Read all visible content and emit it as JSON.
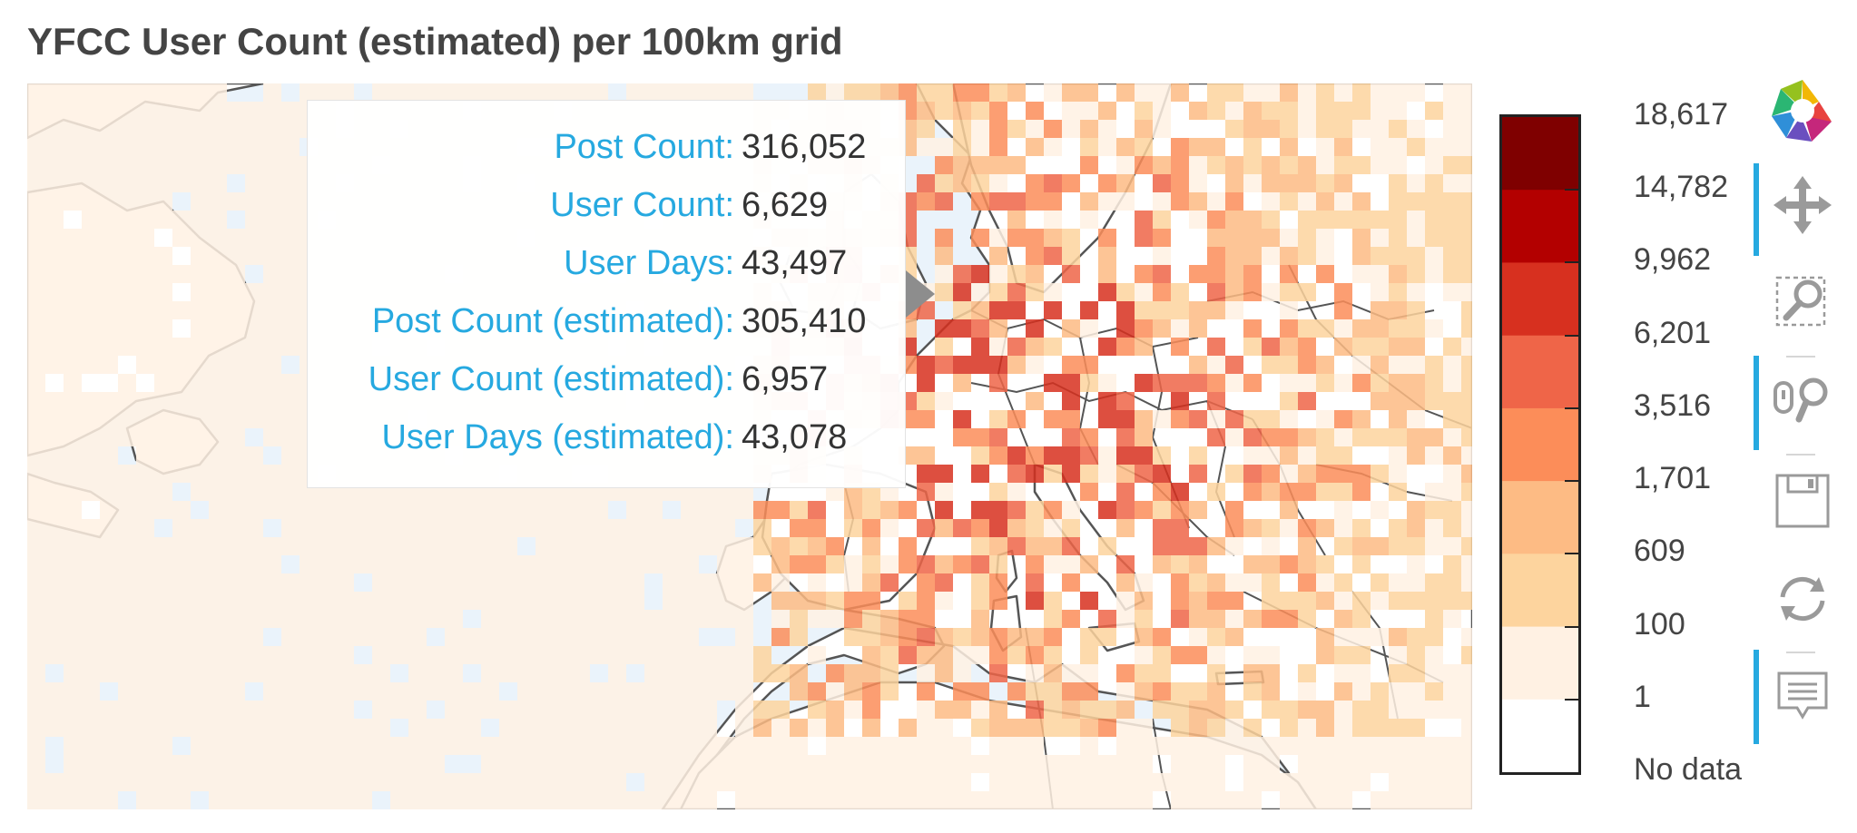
{
  "title": "YFCC User Count (estimated) per 100km grid",
  "tooltip": {
    "rows": [
      {
        "label": "Post Count:",
        "value": "316,052"
      },
      {
        "label": "User Count:",
        "value": "6,629"
      },
      {
        "label": "User Days:",
        "value": "43,497"
      },
      {
        "label": "Post Count (estimated):",
        "value": "305,410"
      },
      {
        "label": "User Count (estimated):",
        "value": "6,957"
      },
      {
        "label": "User Days (estimated):",
        "value": "43,078"
      }
    ]
  },
  "colorbar": {
    "labels": [
      "18,617",
      "14,782",
      "9,962",
      "6,201",
      "3,516",
      "1,701",
      "609",
      "100",
      "1",
      "No data"
    ],
    "colors": [
      "#7f0000",
      "#b30000",
      "#d7301f",
      "#ef6548",
      "#fc8d59",
      "#fdbb84",
      "#fdd49e",
      "#fff1e3",
      "#ffffff"
    ]
  },
  "map": {
    "ocean_color": "#eaf3fb",
    "land_color": "#ffffff",
    "border_color": "#555555"
  },
  "toolbar": {
    "tools": [
      {
        "name": "bokeh-logo-icon",
        "active": false
      },
      {
        "name": "pan-icon",
        "active": true
      },
      {
        "name": "box-zoom-icon",
        "active": false
      },
      {
        "name": "wheel-zoom-icon",
        "active": true
      },
      {
        "name": "save-icon",
        "active": false
      },
      {
        "name": "reset-icon",
        "active": false
      },
      {
        "name": "hover-icon",
        "active": true
      }
    ],
    "active_color": "#26a9e0",
    "icon_color": "#999999"
  }
}
